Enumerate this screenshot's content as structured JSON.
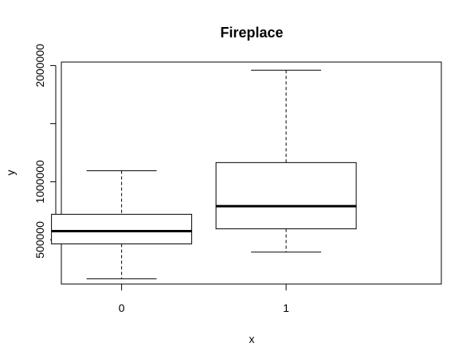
{
  "chart_data": {
    "type": "box",
    "title": "Fireplace",
    "xlabel": "x",
    "ylabel": "y",
    "categories": [
      "0",
      "1"
    ],
    "boxes": [
      {
        "category": "0",
        "whisker_low": 165000,
        "q1": 465000,
        "median": 575000,
        "q3": 720000,
        "whisker_high": 1095000
      },
      {
        "category": "1",
        "whisker_low": 395000,
        "q1": 595000,
        "median": 790000,
        "q3": 1165000,
        "whisker_high": 1960000
      }
    ],
    "y_ticks": [
      {
        "value": 500000,
        "label": "500000"
      },
      {
        "value": 1000000,
        "label": "1000000"
      },
      {
        "value": 1500000,
        "label": ""
      },
      {
        "value": 2000000,
        "label": "2000000"
      }
    ],
    "ylim": [
      120000,
      2030000
    ],
    "grid": false
  }
}
